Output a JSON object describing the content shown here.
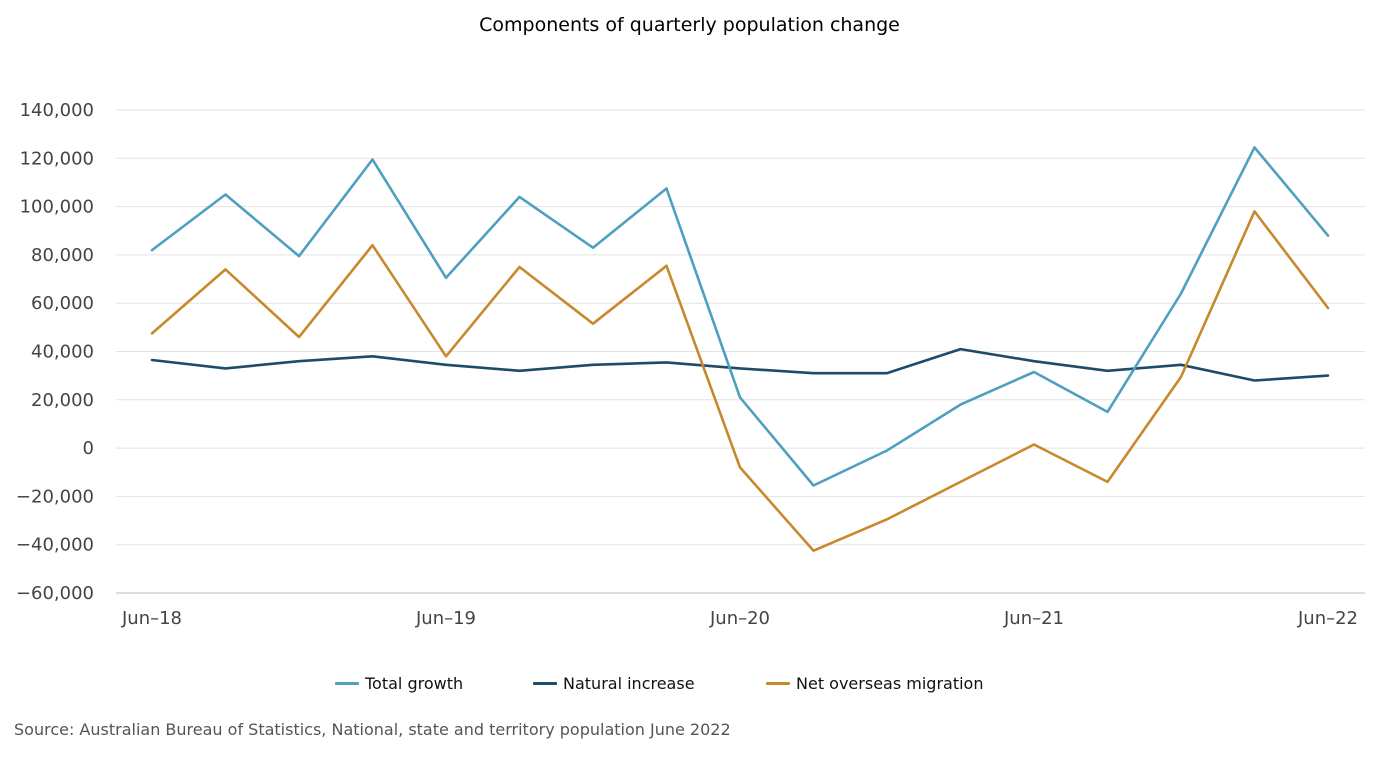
{
  "chart_data": {
    "type": "line",
    "title": "Components of quarterly population change",
    "x_tick_labels": [
      "Jun–18",
      "Jun–19",
      "Jun–20",
      "Jun–21",
      "Jun–22"
    ],
    "x_tick_indices": [
      0,
      4,
      8,
      12,
      16
    ],
    "x": [
      "Jun-18",
      "Sep-18",
      "Dec-18",
      "Mar-19",
      "Jun-19",
      "Sep-19",
      "Dec-19",
      "Mar-20",
      "Jun-20",
      "Sep-20",
      "Dec-20",
      "Mar-21",
      "Jun-21",
      "Sep-21",
      "Dec-21",
      "Mar-22",
      "Jun-22"
    ],
    "ylim": [
      -60000,
      140000
    ],
    "y_ticks": [
      -60000,
      -40000,
      -20000,
      0,
      20000,
      40000,
      60000,
      80000,
      100000,
      120000,
      140000
    ],
    "y_tick_labels": [
      "−60,000",
      "−40,000",
      "−20,000",
      "0",
      "20,000",
      "40,000",
      "60,000",
      "80,000",
      "100,000",
      "120,000",
      "140,000"
    ],
    "grid": true,
    "legend_position": "bottom-center",
    "series": [
      {
        "name": "Total growth",
        "color": "#4f9fc0",
        "values": [
          82000,
          105000,
          79500,
          119500,
          70500,
          104000,
          83000,
          107500,
          21000,
          -15500,
          -1000,
          18000,
          31500,
          15000,
          64000,
          124500,
          88000
        ]
      },
      {
        "name": "Natural increase",
        "color": "#1f4b6b",
        "values": [
          36500,
          33000,
          36000,
          38000,
          34500,
          32000,
          34500,
          35500,
          33000,
          31000,
          31000,
          41000,
          36000,
          32000,
          34500,
          28000,
          30000
        ]
      },
      {
        "name": "Net overseas migration",
        "color": "#c8882c",
        "values": [
          47500,
          74000,
          46000,
          84000,
          38000,
          75000,
          51500,
          75500,
          -8000,
          -42500,
          -29500,
          -14000,
          1500,
          -14000,
          29500,
          98000,
          58000
        ]
      }
    ]
  },
  "source_text": "Source: Australian Bureau of Statistics, National, state and territory population June 2022"
}
